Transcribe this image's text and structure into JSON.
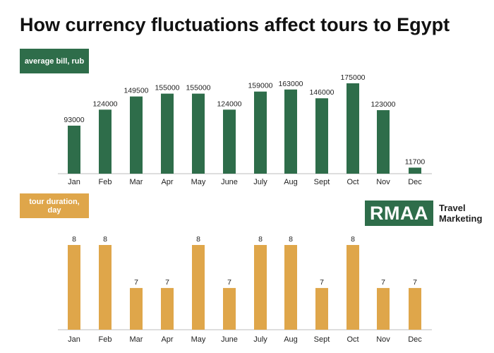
{
  "title": "How currency fluctuations affect tours to Egypt",
  "colors": {
    "green": "#2e6d4a",
    "gold": "#dfa64a",
    "axis": "#bdbdbd",
    "text": "#222222"
  },
  "badges": {
    "bill": "average bill, rub",
    "duration": "tour duration, day"
  },
  "logo": {
    "mark": "RMAA",
    "line1": "Travel",
    "line2": "Marketing"
  },
  "chart_data": [
    {
      "type": "bar",
      "categories": [
        "Jan",
        "Feb",
        "Mar",
        "Apr",
        "May",
        "June",
        "July",
        "Aug",
        "Sept",
        "Oct",
        "Nov",
        "Dec"
      ],
      "series": [
        {
          "name": "average bill, rub",
          "values": [
            93000,
            124000,
            149500,
            155000,
            155000,
            124000,
            159000,
            163000,
            146000,
            175000,
            123000,
            11700
          ]
        }
      ],
      "value_labels": [
        "93000",
        "124000",
        "149500",
        "155000",
        "155000",
        "124000",
        "159000",
        "163000",
        "146000",
        "175000",
        "123000",
        "11700"
      ],
      "ylim": [
        0,
        175000
      ],
      "grid": false
    },
    {
      "type": "bar",
      "categories": [
        "Jan",
        "Feb",
        "Mar",
        "Apr",
        "May",
        "June",
        "July",
        "Aug",
        "Sept",
        "Oct",
        "Nov",
        "Dec"
      ],
      "series": [
        {
          "name": "tour duration, day",
          "values": [
            8,
            8,
            7,
            7,
            8,
            7,
            8,
            8,
            7,
            8,
            7,
            7
          ]
        }
      ],
      "value_labels": [
        "8",
        "8",
        "7",
        "7",
        "8",
        "7",
        "8",
        "8",
        "7",
        "8",
        "7",
        "7"
      ],
      "grid": false
    }
  ]
}
